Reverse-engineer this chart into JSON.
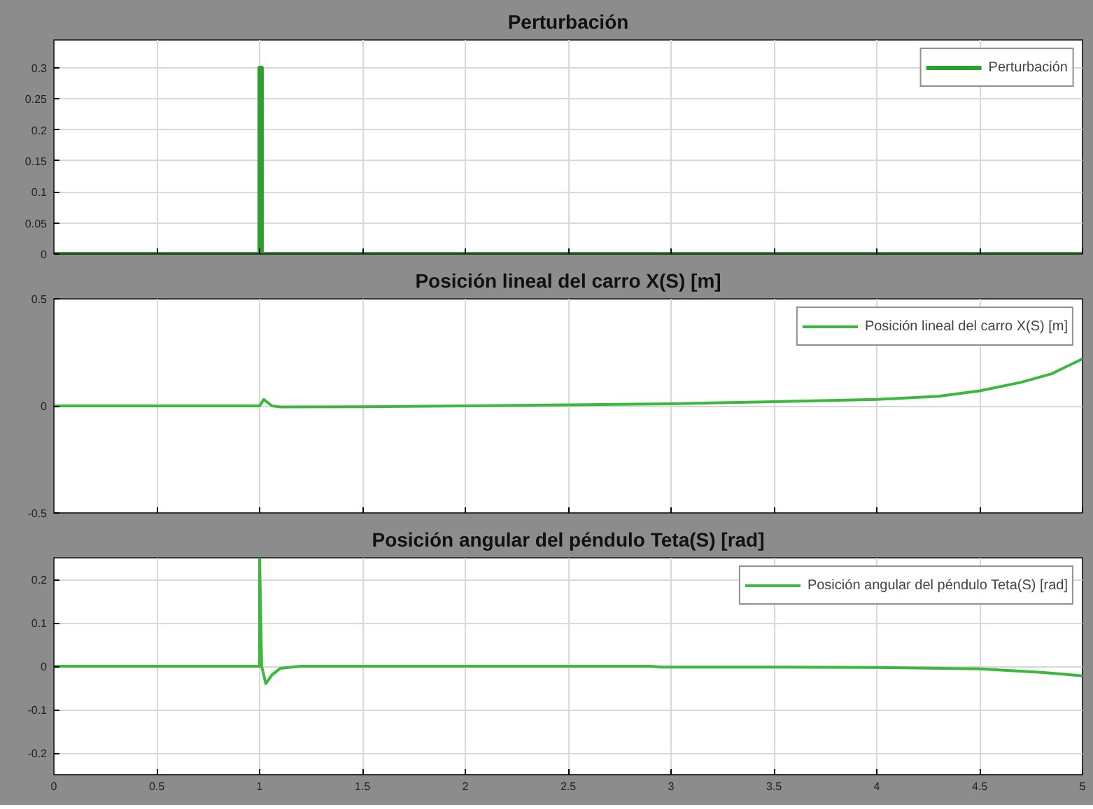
{
  "chart_data": [
    {
      "type": "step",
      "title": "Perturbación",
      "x": [
        0,
        1,
        1.01,
        5
      ],
      "series": [
        {
          "name": "Perturbación",
          "color": "#2ca02c",
          "values": [
            0,
            0.3,
            0,
            0
          ]
        }
      ],
      "xlim": [
        0,
        5
      ],
      "xticks": [
        0,
        0.5,
        1,
        1.5,
        2,
        2.5,
        3,
        3.5,
        4,
        4.5,
        5
      ],
      "ylim": [
        0,
        0.345
      ],
      "yticks": [
        0,
        0.05,
        0.1,
        0.15,
        0.2,
        0.25,
        0.3
      ],
      "grid": true,
      "legend": "top right",
      "tick_labels": "y"
    },
    {
      "type": "line",
      "title": "Posición lineal del carro X(S) [m]",
      "x": [
        0,
        1,
        1.02,
        1.06,
        1.1,
        1.5,
        2,
        2.5,
        3,
        3.5,
        4,
        4.3,
        4.5,
        4.7,
        4.85,
        5
      ],
      "series": [
        {
          "name": "Posición lineal del carro X(S) [m]",
          "color": "#3cb83c",
          "values": [
            0,
            0,
            0.03,
            0,
            -0.005,
            -0.004,
            0,
            0.005,
            0.01,
            0.02,
            0.03,
            0.045,
            0.07,
            0.11,
            0.15,
            0.22
          ]
        }
      ],
      "xlim": [
        0,
        5
      ],
      "xticks": [
        0,
        0.5,
        1,
        1.5,
        2,
        2.5,
        3,
        3.5,
        4,
        4.5,
        5
      ],
      "ylim": [
        -0.5,
        0.5
      ],
      "yticks": [
        -0.5,
        0,
        0.5
      ],
      "grid": true,
      "legend": "top right",
      "tick_labels": "y"
    },
    {
      "type": "line",
      "title": "Posición angular del péndulo Teta(S) [rad]",
      "x": [
        0,
        1,
        1,
        1.01,
        1.03,
        1.06,
        1.1,
        1.2,
        2.9,
        2.95,
        3.5,
        4,
        4.5,
        4.8,
        5
      ],
      "series": [
        {
          "name": "Posición angular del péndulo Teta(S) [rad]",
          "color": "#3cb83c",
          "values": [
            0,
            0,
            0.25,
            0,
            -0.04,
            -0.02,
            -0.005,
            0,
            0,
            -0.002,
            -0.002,
            -0.003,
            -0.006,
            -0.014,
            -0.022
          ]
        }
      ],
      "xlim": [
        0,
        5
      ],
      "xticks": [
        0,
        0.5,
        1,
        1.5,
        2,
        2.5,
        3,
        3.5,
        4,
        4.5,
        5
      ],
      "ylim": [
        -0.25,
        0.25
      ],
      "yticks": [
        -0.2,
        -0.1,
        0,
        0.1,
        0.2
      ],
      "grid": true,
      "legend": "top right"
    }
  ]
}
